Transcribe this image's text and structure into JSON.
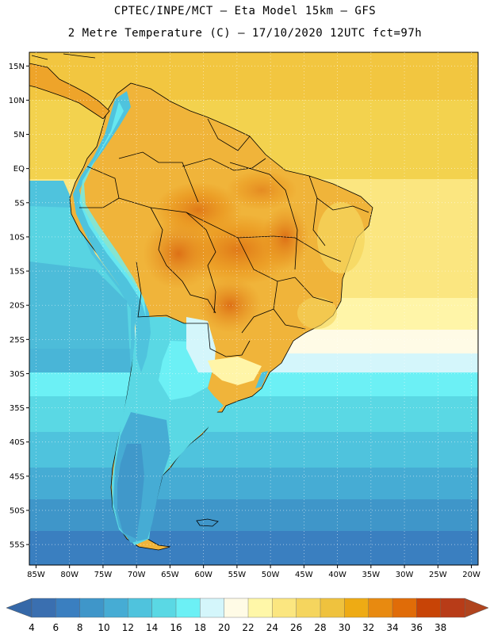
{
  "header": {
    "line1": "CPTEC/INPE/MCT –  Eta Model 15km – GFS",
    "line2": "2 Metre Temperature (C) – 17/10/2020 12UTC fct=97h"
  },
  "map": {
    "lat_labels": [
      "15N",
      "10N",
      "5N",
      "EQ",
      "5S",
      "10S",
      "15S",
      "20S",
      "25S",
      "30S",
      "35S",
      "40S",
      "45S",
      "50S",
      "55S"
    ],
    "lat_values": [
      15,
      10,
      5,
      0,
      -5,
      -10,
      -15,
      -20,
      -25,
      -30,
      -35,
      -40,
      -45,
      -50,
      -55
    ],
    "lon_labels": [
      "85W",
      "80W",
      "75W",
      "70W",
      "65W",
      "60W",
      "55W",
      "50W",
      "45W",
      "40W",
      "35W",
      "30W",
      "25W",
      "20W"
    ],
    "lon_values": [
      -85,
      -80,
      -75,
      -70,
      -65,
      -60,
      -55,
      -50,
      -45,
      -40,
      -35,
      -30,
      -25,
      -20
    ],
    "lat_range": [
      -58,
      17
    ],
    "lon_range": [
      -86,
      -19
    ]
  },
  "colorbar": {
    "labels": [
      "4",
      "6",
      "8",
      "10",
      "12",
      "14",
      "16",
      "18",
      "20",
      "22",
      "24",
      "26",
      "28",
      "30",
      "32",
      "34",
      "36",
      "38"
    ],
    "colors": [
      "#3a6fb0",
      "#3a7fc0",
      "#3f96c9",
      "#46acd4",
      "#4fc3dd",
      "#5ad8e4",
      "#6cf0f5",
      "#d4f6fb",
      "#fffbe6",
      "#fff7a8",
      "#fbe680",
      "#f5d55e",
      "#efc23e",
      "#eeab14",
      "#e88a10",
      "#e06c08",
      "#c84406",
      "#b83c18"
    ],
    "low_color": "#3568a8",
    "high_color": "#b0441e",
    "unit": "C"
  }
}
